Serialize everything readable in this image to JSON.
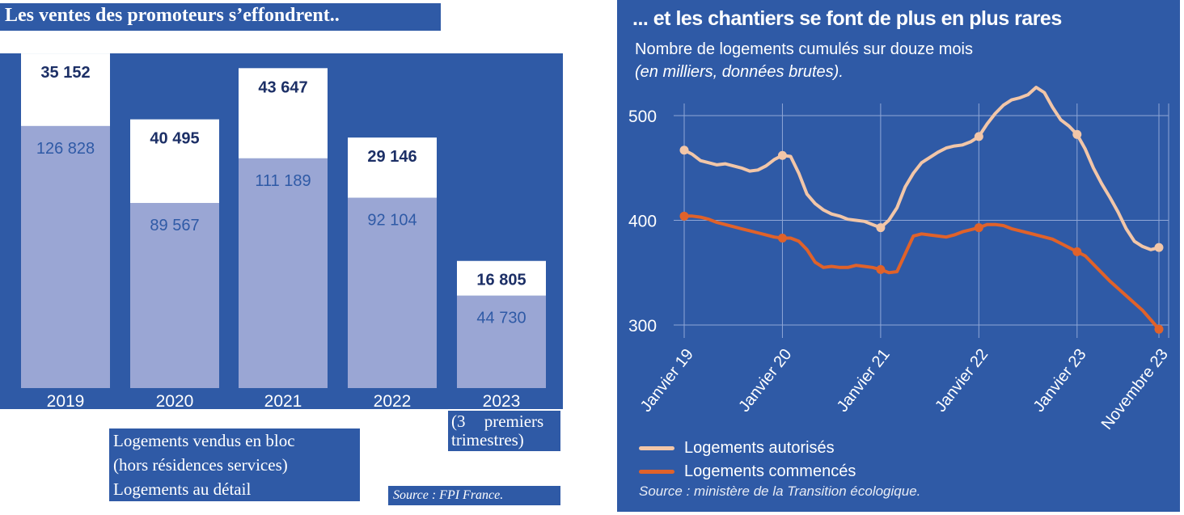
{
  "left": {
    "title": "Les ventes des promoteurs s’effondrent..",
    "legend": [
      "Logements vendus en bloc",
      "(hors résidences services)",
      "Logements au détail"
    ],
    "note_2023": [
      "(3 premiers",
      "trimestres)"
    ],
    "source": "Source : FPI France.",
    "colors": {
      "panel": "#2f5aa6",
      "bloc": "#ffffff",
      "detail": "#9aa6d4",
      "value_text": "#2f5aa6",
      "bloc_text": "#1c2f66"
    }
  },
  "right": {
    "title": "... et les chantiers se font de plus en plus rares",
    "subtitle": "Nombre de logements cumulés sur douze mois",
    "subtitle2": "(en milliers, données brutes).",
    "legend": [
      {
        "label": "Logements autorisés",
        "color": "#f2c6a8"
      },
      {
        "label": "Logements commencés",
        "color": "#e0622a"
      }
    ],
    "source": "Source : ministère de la Transition écologique."
  },
  "chart_data": [
    {
      "type": "bar",
      "title": "Les ventes des promoteurs s’effondrent..",
      "categories": [
        "2019",
        "2020",
        "2021",
        "2022",
        "2023"
      ],
      "series": [
        {
          "name": "Logements au détail",
          "values": [
            126828,
            89567,
            111189,
            92104,
            44730
          ],
          "labels": [
            "126 828",
            "89 567",
            "111 189",
            "92 104",
            "44 730"
          ]
        },
        {
          "name": "Logements vendus en bloc (hors résidences services)",
          "values": [
            35152,
            40495,
            43647,
            29146,
            16805
          ],
          "labels": [
            "35 152",
            "40 495",
            "43 647",
            "29 146",
            "16 805"
          ]
        }
      ],
      "stacked": true
    },
    {
      "type": "line",
      "title": "... et les chantiers se font de plus en plus rares",
      "ylabel": "Nombre de logements cumulés sur douze mois (en milliers, données brutes).",
      "ylim": [
        290,
        530
      ],
      "yticks": [
        300,
        400,
        500
      ],
      "x_ticks": [
        "Janvier 19",
        "Janvier 20",
        "Janvier 21",
        "Janvier 22",
        "Janvier 23",
        "Novembre 23"
      ],
      "x_tick_positions": [
        0,
        12,
        24,
        36,
        48,
        58
      ],
      "grid": true,
      "series": [
        {
          "name": "Logements autorisés",
          "x": [
            0,
            1,
            2,
            3,
            4,
            5,
            6,
            7,
            8,
            9,
            10,
            11,
            12,
            13,
            14,
            15,
            16,
            17,
            18,
            19,
            20,
            21,
            22,
            23,
            24,
            25,
            26,
            27,
            28,
            29,
            30,
            31,
            32,
            33,
            34,
            35,
            36,
            37,
            38,
            39,
            40,
            41,
            42,
            43,
            44,
            45,
            46,
            47,
            48,
            49,
            50,
            51,
            52,
            53,
            54,
            55,
            56,
            57,
            58
          ],
          "values": [
            467,
            463,
            457,
            455,
            453,
            454,
            452,
            450,
            447,
            448,
            452,
            458,
            462,
            461,
            445,
            425,
            416,
            410,
            406,
            404,
            401,
            400,
            399,
            396,
            393,
            400,
            412,
            432,
            445,
            455,
            460,
            465,
            469,
            471,
            472,
            475,
            480,
            492,
            502,
            510,
            515,
            517,
            520,
            527,
            522,
            508,
            496,
            490,
            482,
            468,
            450,
            435,
            422,
            408,
            392,
            380,
            375,
            372,
            374
          ],
          "markers_at": [
            0,
            12,
            24,
            36,
            48,
            58
          ]
        },
        {
          "name": "Logements commencés",
          "x": [
            0,
            1,
            2,
            3,
            4,
            5,
            6,
            7,
            8,
            9,
            10,
            11,
            12,
            13,
            14,
            15,
            16,
            17,
            18,
            19,
            20,
            21,
            22,
            23,
            24,
            25,
            26,
            27,
            28,
            29,
            30,
            31,
            32,
            33,
            34,
            35,
            36,
            37,
            38,
            39,
            40,
            41,
            42,
            43,
            44,
            45,
            46,
            47,
            48,
            49,
            50,
            51,
            52,
            53,
            54,
            55,
            56,
            57,
            58
          ],
          "values": [
            404,
            404,
            403,
            401,
            398,
            396,
            394,
            392,
            390,
            388,
            386,
            384,
            383,
            383,
            380,
            372,
            360,
            355,
            356,
            355,
            355,
            357,
            356,
            355,
            353,
            350,
            351,
            368,
            385,
            387,
            386,
            385,
            384,
            386,
            389,
            391,
            393,
            396,
            396,
            395,
            392,
            390,
            388,
            386,
            384,
            382,
            378,
            374,
            370,
            366,
            358,
            350,
            342,
            335,
            328,
            321,
            314,
            305,
            296
          ],
          "markers_at": [
            0,
            12,
            24,
            36,
            48,
            58
          ]
        }
      ]
    }
  ]
}
